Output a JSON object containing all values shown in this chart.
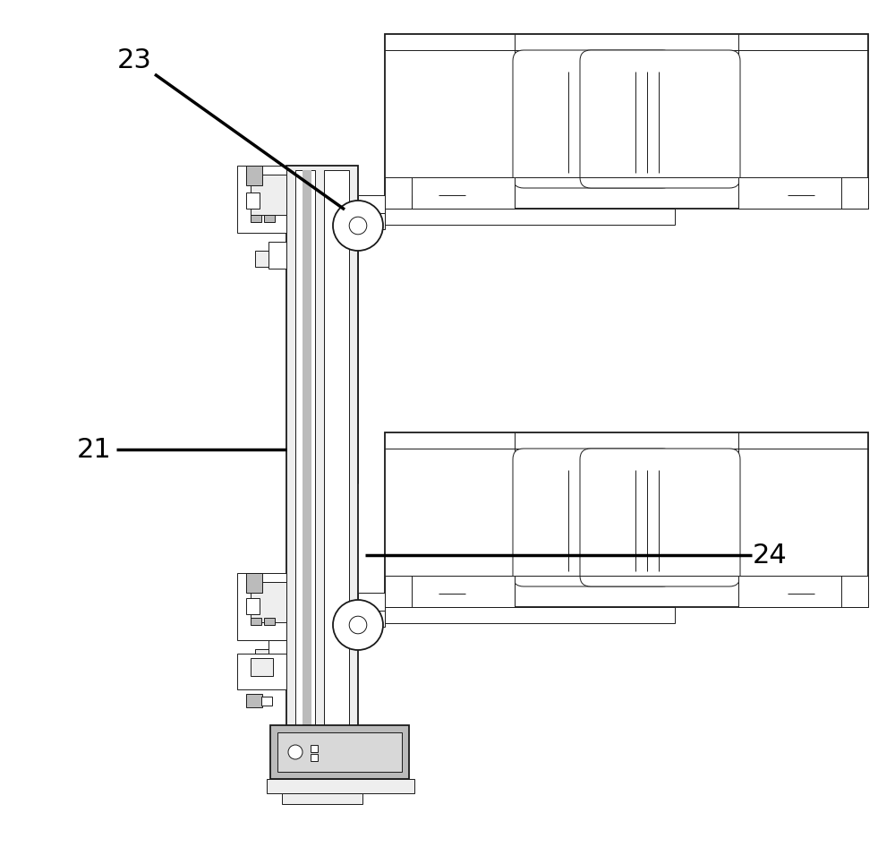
{
  "bg_color": "#ffffff",
  "line_color": "#1a1a1a",
  "lw_thin": 0.7,
  "lw_med": 1.3,
  "lw_thick": 2.5,
  "label_23": "23",
  "label_21": "21",
  "label_24": "24",
  "label_fontsize": 22,
  "arrow_color": "#000000",
  "gray_fill": "#d8d8d8",
  "light_gray": "#eeeeee",
  "mid_gray": "#bbbbbb"
}
